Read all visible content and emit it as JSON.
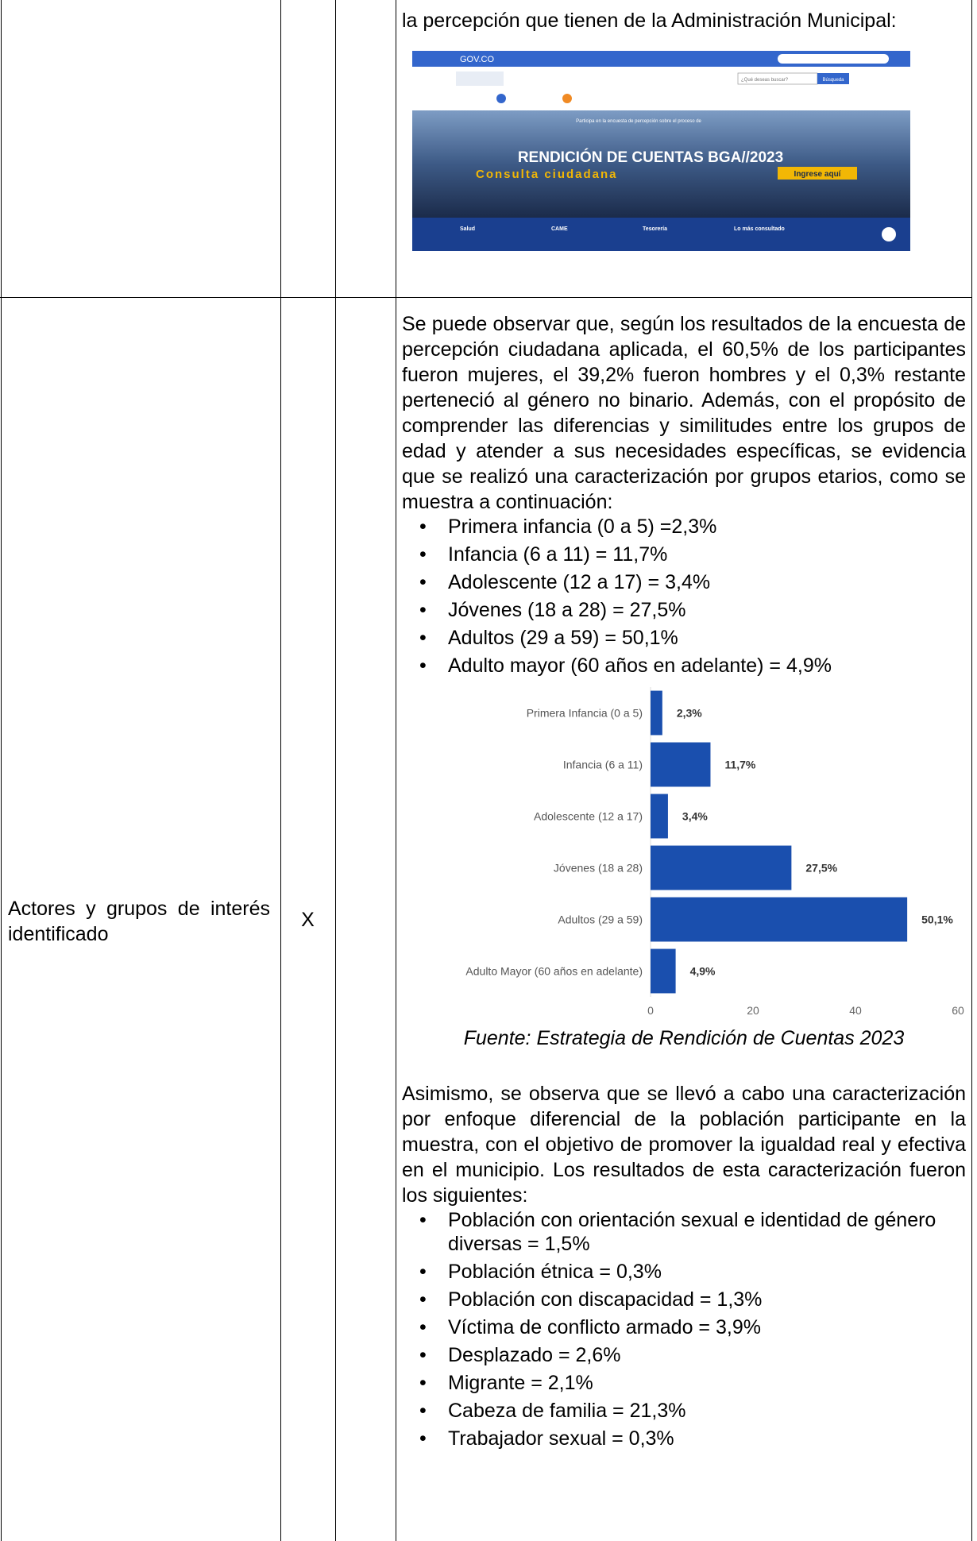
{
  "rows": [
    {
      "text": "la percepción que tienen de la Administración Municipal:",
      "screenshot": {
        "brand": "GOV.CO",
        "search": "¿Qué deseas buscar?",
        "button": "Búsqueda",
        "banner_note": "Participa en la encuesta de percepción sobre el proceso de",
        "left": "Consulta ciudadana",
        "headline": "RENDICIÓN DE CUENTAS BGA//2023",
        "cta": "Ingrese aquí",
        "footer": [
          "Salud",
          "CAME",
          "Tesorería",
          "Lo más consultado"
        ]
      }
    },
    {
      "actor": "Actores y grupos de interés identificado",
      "mark": "X",
      "paragraph1": "Se puede observar que, según los resultados de la encuesta de percepción ciudadana aplicada, el 60,5% de los participantes fueron mujeres, el 39,2% fueron hombres y el 0,3% restante perteneció al género no binario. Además, con el propósito de comprender las diferencias y similitudes entre los grupos de edad y atender a sus necesidades específicas, se evidencia que se realizó una caracterización por grupos etarios, como se muestra a continuación:",
      "list1": [
        "Primera infancia (0 a 5) =2,3%",
        "Infancia (6 a 11) = 11,7%",
        "Adolescente (12 a 17) = 3,4%",
        "Jóvenes (18 a 28) = 27,5%",
        "Adultos (29 a 59) = 50,1%",
        "Adulto mayor (60 años en adelante) = 4,9%"
      ],
      "chart": {
        "type": "bar",
        "orientation": "horizontal",
        "color": "#1a4fae",
        "categories": [
          "Primera Infancia (0 a 5)",
          "Infancia (6 a 11)",
          "Adolescente (12 a 17)",
          "Jóvenes (18 a 28)",
          "Adultos (29 a 59)",
          "Adulto Mayor (60 años en adelante)"
        ],
        "values": [
          2.3,
          11.7,
          3.4,
          27.5,
          50.1,
          4.9
        ],
        "value_labels": [
          "2,3%",
          "11,7%",
          "3,4%",
          "27,5%",
          "50,1%",
          "4,9%"
        ],
        "xlim": [
          0,
          60
        ],
        "xticks": [
          0,
          20,
          40,
          60
        ]
      },
      "caption": "Fuente: Estrategia de Rendición de Cuentas 2023",
      "paragraph2": "Asimismo, se observa que se llevó a cabo una caracterización por enfoque diferencial de la población participante en la muestra, con el objetivo de promover la igualdad real y efectiva en el municipio. Los resultados de esta caracterización fueron los siguientes:",
      "list2": [
        "Población con orientación sexual e identidad de género diversas = 1,5%",
        "Población étnica = 0,3%",
        "Población con discapacidad = 1,3%",
        "Víctima de conflicto armado = 3,9%",
        "Desplazado = 2,6%",
        "Migrante = 2,1%",
        "Cabeza de familia = 21,3%",
        "Trabajador sexual = 0,3%"
      ]
    }
  ]
}
